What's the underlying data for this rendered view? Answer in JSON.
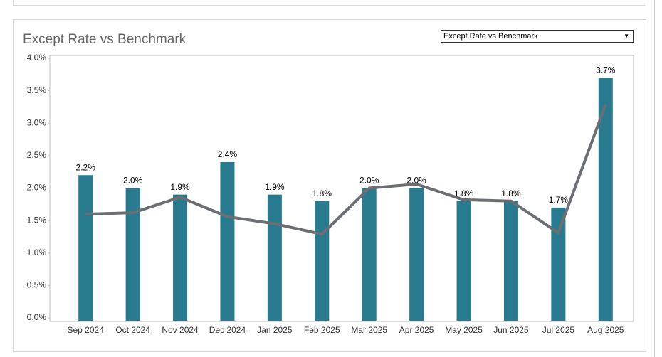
{
  "dropdown": {
    "selected": "Except Rate vs Benchmark"
  },
  "chart_data": {
    "type": "combo",
    "title": "Except Rate vs Benchmark",
    "categories": [
      "Sep 2024",
      "Oct 2024",
      "Nov 2024",
      "Dec 2024",
      "Jan 2025",
      "Feb 2025",
      "Mar 2025",
      "Apr 2025",
      "May 2025",
      "Jun 2025",
      "Jul 2025",
      "Aug 2025"
    ],
    "series": [
      {
        "type": "bar",
        "color": "#287b8f",
        "values": [
          2.2,
          2.0,
          1.9,
          2.4,
          1.9,
          1.8,
          2.0,
          2.0,
          1.8,
          1.8,
          1.7,
          3.7
        ],
        "value_labels": [
          "2.2%",
          "2.0%",
          "1.9%",
          "2.4%",
          "1.9%",
          "1.8%",
          "2.0%",
          "2.0%",
          "1.8%",
          "1.8%",
          "1.7%",
          "3.7%"
        ]
      },
      {
        "type": "line",
        "color": "#6b6e73",
        "values": [
          1.6,
          1.62,
          1.86,
          1.56,
          1.45,
          1.29,
          2.0,
          2.06,
          1.82,
          1.8,
          1.31,
          3.29
        ]
      }
    ],
    "ylim": [
      0,
      4
    ],
    "yticks": [
      {
        "value": 0,
        "label": "0.0%"
      },
      {
        "value": 0.5,
        "label": "0.5%"
      },
      {
        "value": 1,
        "label": "1.0%"
      },
      {
        "value": 1.5,
        "label": "1.5%"
      },
      {
        "value": 2,
        "label": "2.0%"
      },
      {
        "value": 2.5,
        "label": "2.5%"
      },
      {
        "value": 3,
        "label": "3.0%"
      },
      {
        "value": 3.5,
        "label": "3.5%"
      },
      {
        "value": 4,
        "label": "4.0%"
      }
    ],
    "grid": false
  }
}
